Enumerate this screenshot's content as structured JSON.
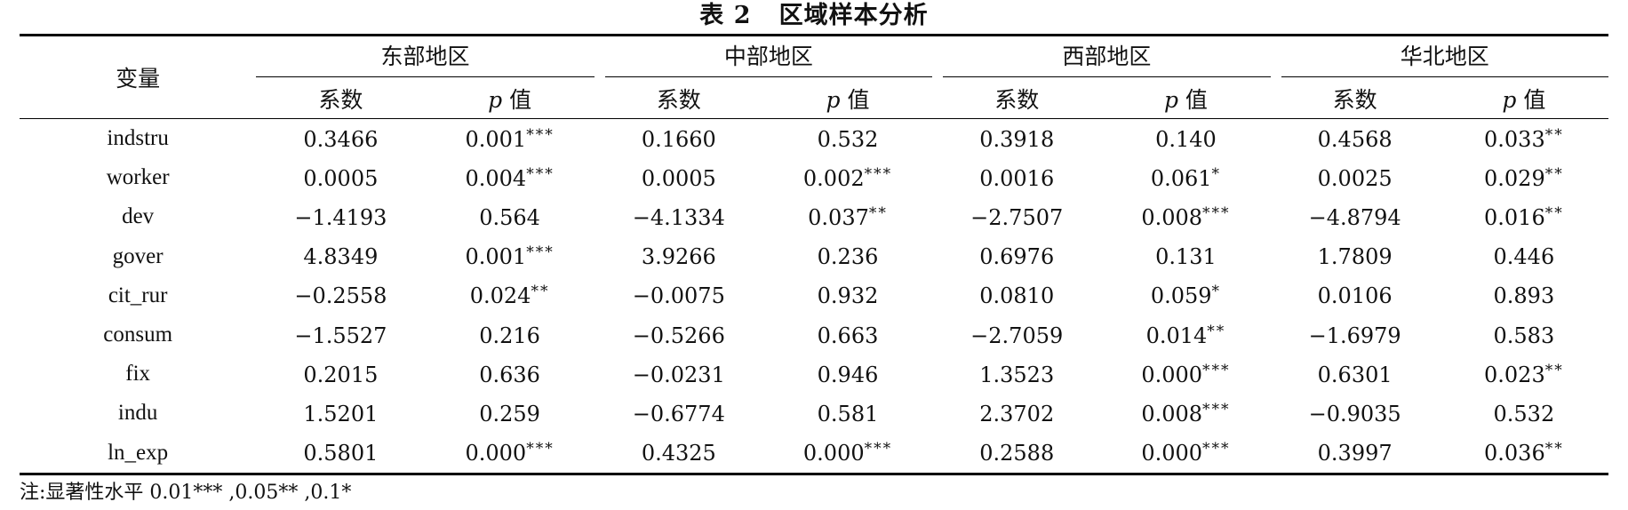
{
  "title": "表 2   区域样本分析",
  "header": {
    "variable_label": "变量",
    "regions": [
      "东部地区",
      "中部地区",
      "西部地区",
      "华北地区"
    ],
    "coef_label": "系数",
    "p_label_italic": "p",
    "p_label_suffix": "值"
  },
  "rows": [
    {
      "name": "indstru",
      "cells": [
        [
          "0.3466",
          ""
        ],
        [
          "0.001",
          "***"
        ],
        [
          "0.1660",
          ""
        ],
        [
          "0.532",
          ""
        ],
        [
          "0.3918",
          ""
        ],
        [
          "0.140",
          ""
        ],
        [
          "0.4568",
          ""
        ],
        [
          "0.033",
          "**"
        ]
      ]
    },
    {
      "name": "worker",
      "cells": [
        [
          "0.0005",
          ""
        ],
        [
          "0.004",
          "***"
        ],
        [
          "0.0005",
          ""
        ],
        [
          "0.002",
          "***"
        ],
        [
          "0.0016",
          ""
        ],
        [
          "0.061",
          "*"
        ],
        [
          "0.0025",
          ""
        ],
        [
          "0.029",
          "**"
        ]
      ]
    },
    {
      "name": "dev",
      "cells": [
        [
          "−1.4193",
          ""
        ],
        [
          "0.564",
          ""
        ],
        [
          "−4.1334",
          ""
        ],
        [
          "0.037",
          "**"
        ],
        [
          "−2.7507",
          ""
        ],
        [
          "0.008",
          "***"
        ],
        [
          "−4.8794",
          ""
        ],
        [
          "0.016",
          "**"
        ]
      ]
    },
    {
      "name": "gover",
      "cells": [
        [
          "4.8349",
          ""
        ],
        [
          "0.001",
          "***"
        ],
        [
          "3.9266",
          ""
        ],
        [
          "0.236",
          ""
        ],
        [
          "0.6976",
          ""
        ],
        [
          "0.131",
          ""
        ],
        [
          "1.7809",
          ""
        ],
        [
          "0.446",
          ""
        ]
      ]
    },
    {
      "name": "cit_rur",
      "cells": [
        [
          "−0.2558",
          ""
        ],
        [
          "0.024",
          "**"
        ],
        [
          "−0.0075",
          ""
        ],
        [
          "0.932",
          ""
        ],
        [
          "0.0810",
          ""
        ],
        [
          "0.059",
          "*"
        ],
        [
          "0.0106",
          ""
        ],
        [
          "0.893",
          ""
        ]
      ]
    },
    {
      "name": "consum",
      "cells": [
        [
          "−1.5527",
          ""
        ],
        [
          "0.216",
          ""
        ],
        [
          "−0.5266",
          ""
        ],
        [
          "0.663",
          ""
        ],
        [
          "−2.7059",
          ""
        ],
        [
          "0.014",
          "**"
        ],
        [
          "−1.6979",
          ""
        ],
        [
          "0.583",
          ""
        ]
      ]
    },
    {
      "name": "fix",
      "cells": [
        [
          "0.2015",
          ""
        ],
        [
          "0.636",
          ""
        ],
        [
          "−0.0231",
          ""
        ],
        [
          "0.946",
          ""
        ],
        [
          "1.3523",
          ""
        ],
        [
          "0.000",
          "***"
        ],
        [
          "0.6301",
          ""
        ],
        [
          "0.023",
          "**"
        ]
      ]
    },
    {
      "name": "indu",
      "cells": [
        [
          "1.5201",
          ""
        ],
        [
          "0.259",
          ""
        ],
        [
          "−0.6774",
          ""
        ],
        [
          "0.581",
          ""
        ],
        [
          "2.3702",
          ""
        ],
        [
          "0.008",
          "***"
        ],
        [
          "−0.9035",
          ""
        ],
        [
          "0.532",
          ""
        ]
      ]
    },
    {
      "name": "ln_exp",
      "cells": [
        [
          "0.5801",
          ""
        ],
        [
          "0.000",
          "***"
        ],
        [
          "0.4325",
          ""
        ],
        [
          "0.000",
          "***"
        ],
        [
          "0.2588",
          ""
        ],
        [
          "0.000",
          "***"
        ],
        [
          "0.3997",
          ""
        ],
        [
          "0.036",
          "**"
        ]
      ]
    }
  ],
  "note": "注:显著性水平 0.01*** ,0.05** ,0.1*"
}
